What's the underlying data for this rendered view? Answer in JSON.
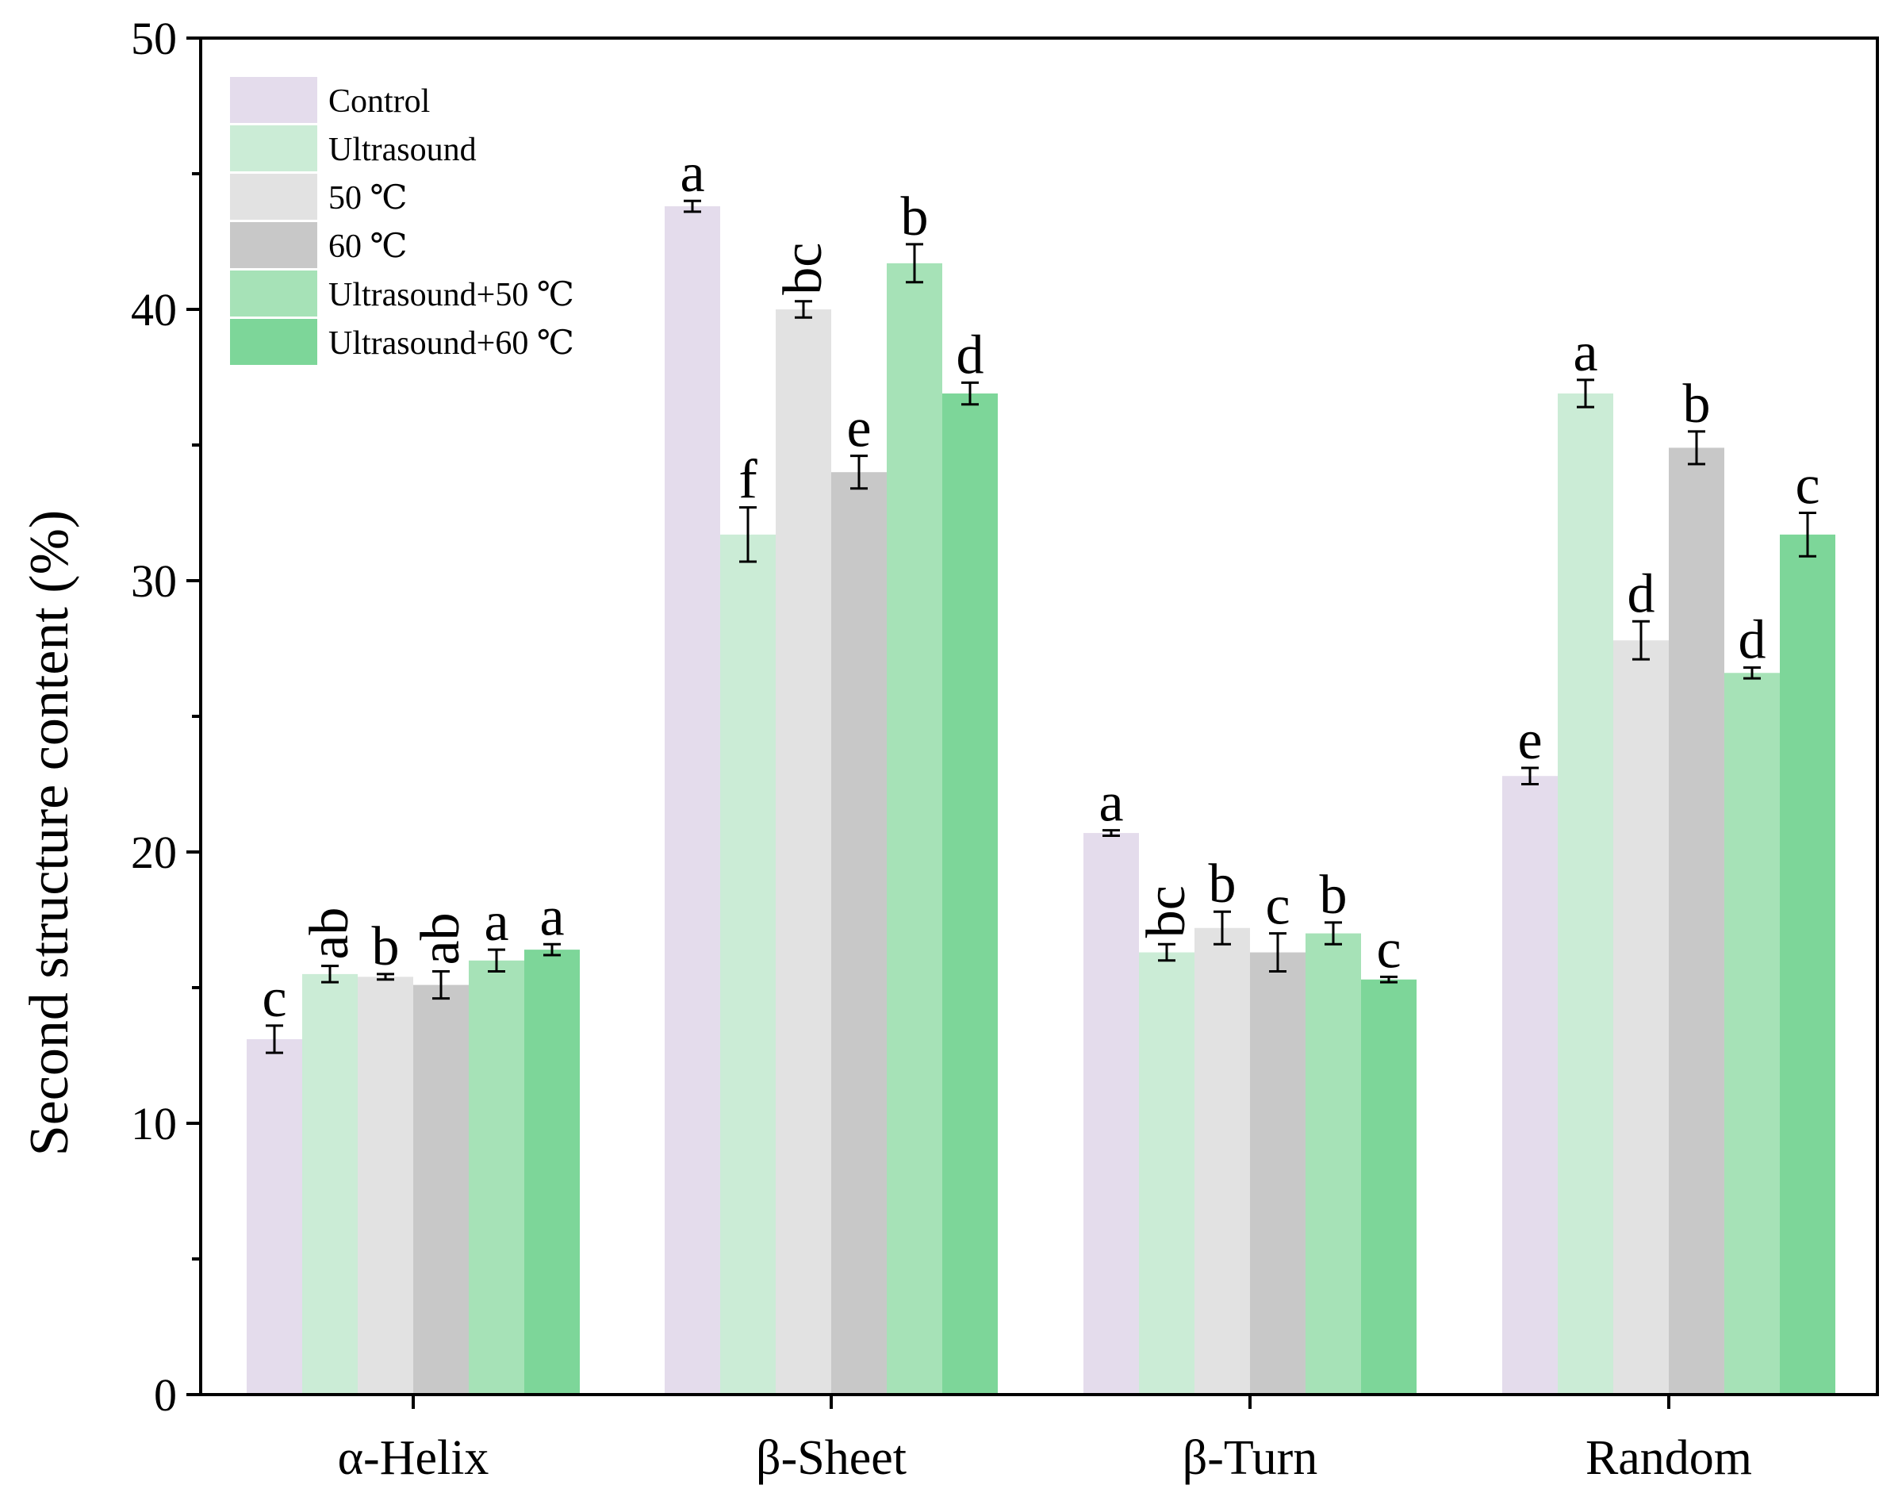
{
  "chart_data": {
    "type": "bar",
    "title": "",
    "xlabel": "",
    "ylabel": "Second structure content (%)",
    "ylim": [
      0,
      50
    ],
    "yticks": [
      0,
      10,
      20,
      30,
      40,
      50
    ],
    "categories": [
      "α-Helix",
      "β-Sheet",
      "β-Turn",
      "Random"
    ],
    "legend_position": "top-left",
    "series": [
      {
        "name": "Control",
        "color": "#e4dcec",
        "values": [
          13.1,
          43.8,
          20.7,
          22.8
        ],
        "errors": [
          0.5,
          0.2,
          0.1,
          0.3
        ],
        "labels": [
          "c",
          "a",
          "a",
          "e"
        ]
      },
      {
        "name": "Ultrasound",
        "color": "#cbecd6",
        "values": [
          15.5,
          31.7,
          16.3,
          36.9
        ],
        "errors": [
          0.3,
          1.0,
          0.3,
          0.5
        ],
        "labels": [
          "ab",
          "f",
          "bc",
          "a"
        ]
      },
      {
        "name": "50 ℃",
        "color": "#e2e2e2",
        "values": [
          15.4,
          40.0,
          17.2,
          27.8
        ],
        "errors": [
          0.1,
          0.3,
          0.6,
          0.7
        ],
        "labels": [
          "b",
          "bc",
          "b",
          "d"
        ]
      },
      {
        "name": "60 ℃",
        "color": "#c8c8c8",
        "values": [
          15.1,
          34.0,
          16.3,
          34.9
        ],
        "errors": [
          0.5,
          0.6,
          0.7,
          0.6
        ],
        "labels": [
          "ab",
          "e",
          "c",
          "b"
        ]
      },
      {
        "name": "Ultrasound+50 ℃",
        "color": "#a6e2b7",
        "values": [
          16.0,
          41.7,
          17.0,
          26.6
        ],
        "errors": [
          0.4,
          0.7,
          0.4,
          0.2
        ],
        "labels": [
          "a",
          "b",
          "b",
          "d"
        ]
      },
      {
        "name": "Ultrasound+60 ℃",
        "color": "#7dd699",
        "values": [
          16.4,
          36.9,
          15.3,
          31.7
        ],
        "errors": [
          0.2,
          0.4,
          0.1,
          0.8
        ],
        "labels": [
          "a",
          "d",
          "c",
          "c"
        ]
      }
    ]
  }
}
